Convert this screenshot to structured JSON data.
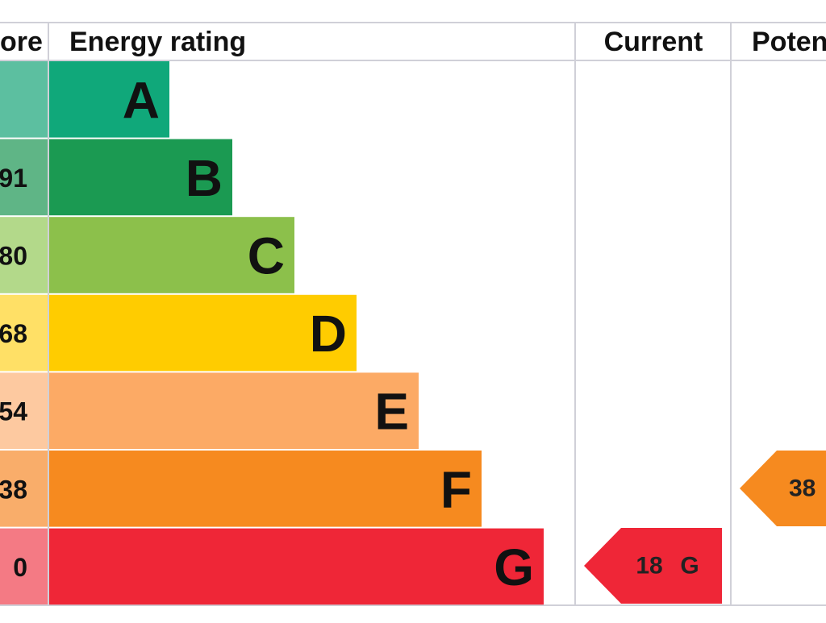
{
  "header": {
    "score": "ore",
    "rating": "Energy rating",
    "current": "Current",
    "potential": "Poten"
  },
  "rows": [
    {
      "band": "A"
    },
    {
      "band": "B",
      "score": "91"
    },
    {
      "band": "C",
      "score": "80"
    },
    {
      "band": "D",
      "score": "68"
    },
    {
      "band": "E",
      "score": "54"
    },
    {
      "band": "F",
      "score": "38"
    },
    {
      "band": "G",
      "score": "0"
    }
  ],
  "current": {
    "score": "18",
    "band": "G"
  },
  "potential": {
    "score": "38"
  }
}
